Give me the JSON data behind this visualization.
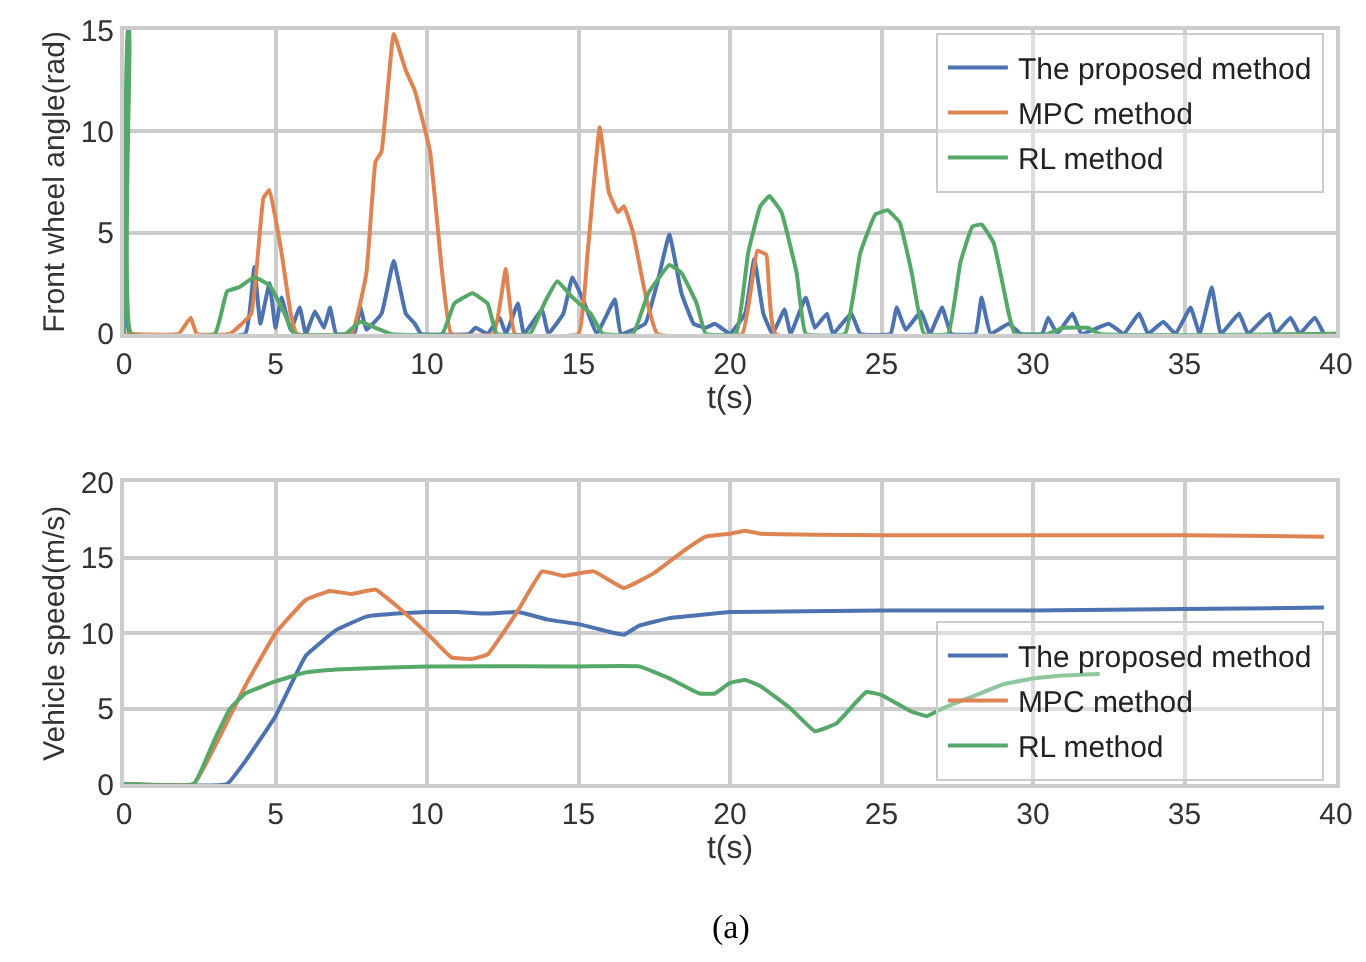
{
  "chart_data": [
    {
      "type": "line",
      "xlabel": "t(s)",
      "ylabel": "Front wheel angle(rad)",
      "xlim": [
        0,
        40
      ],
      "xticks": [
        0,
        5,
        10,
        15,
        20,
        25,
        30,
        35,
        40
      ],
      "ylim": [
        0,
        15
      ],
      "yticks": [
        0,
        5,
        10,
        15
      ],
      "grid": true,
      "legend": "top right",
      "marker": "none",
      "line_style": "solid",
      "series": [
        {
          "name": "The proposed method",
          "color": "#4c72b0",
          "x": [
            0,
            0.2,
            4,
            4.3,
            4.5,
            4.8,
            5.0,
            5.2,
            5.5,
            5.8,
            6.0,
            6.3,
            6.6,
            6.8,
            7,
            7.6,
            7.8,
            8.0,
            8.5,
            8.9,
            9.3,
            9.6,
            9.8,
            11.4,
            11.6,
            12,
            12.4,
            12.6,
            13,
            13.2,
            13.8,
            14,
            14.5,
            14.8,
            15.2,
            15.6,
            16.2,
            16.4,
            17.2,
            17.6,
            18,
            18.4,
            18.8,
            19.2,
            19.5,
            19.8,
            20,
            20.5,
            20.8,
            21.1,
            21.4,
            21.8,
            22,
            22.5,
            22.8,
            23.2,
            23.4,
            24,
            24.3,
            25.3,
            25.5,
            25.8,
            26.3,
            26.6,
            27,
            27.3,
            28.1,
            28.3,
            28.6,
            29.2,
            29.6,
            30.3,
            30.5,
            30.8,
            31.3,
            31.6,
            32.5,
            33,
            33.5,
            33.8,
            34.3,
            34.7,
            35.2,
            35.5,
            35.9,
            36.2,
            36.8,
            37.1,
            37.8,
            38,
            38.5,
            38.8,
            39.3,
            39.6
          ],
          "values": [
            2.3,
            0,
            0,
            3.3,
            0.5,
            2.5,
            0.3,
            1.8,
            0.2,
            1.3,
            0,
            1.1,
            0.3,
            1.3,
            0,
            0,
            1.3,
            0.2,
            1.0,
            3.6,
            1.0,
            0.5,
            0,
            0,
            0.3,
            0,
            0.8,
            0,
            1.5,
            0,
            1.2,
            0,
            1.0,
            2.8,
            1.5,
            0,
            1.7,
            0,
            0.5,
            2.5,
            4.9,
            2.0,
            0.5,
            0.3,
            0.5,
            0.2,
            0,
            1.0,
            3.7,
            1.0,
            0,
            1.2,
            0,
            1.8,
            0.3,
            1.0,
            0,
            1.0,
            0,
            0,
            1.3,
            0.2,
            1.1,
            0,
            1.3,
            0,
            0,
            1.8,
            0,
            0.5,
            0,
            0,
            0.8,
            0,
            1.0,
            0,
            0.5,
            0,
            1.0,
            0,
            0.6,
            0,
            1.3,
            0,
            2.3,
            0,
            1.0,
            0,
            1.0,
            0,
            0.8,
            0,
            0.8,
            0
          ]
        },
        {
          "name": "MPC method",
          "color": "#dd8452",
          "x": [
            0,
            1.8,
            2.2,
            2.4,
            3.5,
            4.2,
            4.6,
            4.8,
            5.2,
            5.5,
            5.7,
            7.5,
            8.0,
            8.3,
            8.5,
            8.9,
            9.3,
            9.6,
            10.1,
            10.5,
            10.8,
            12.2,
            12.6,
            12.9,
            15.0,
            15.3,
            15.7,
            16.0,
            16.3,
            16.5,
            16.8,
            17.2,
            17.6,
            20.4,
            20.9,
            21.2,
            21.5,
            40
          ],
          "values": [
            0,
            0,
            0.8,
            0,
            0,
            1,
            6.7,
            7.1,
            4,
            1,
            0,
            0,
            3,
            8.5,
            9,
            14.8,
            13,
            12,
            9,
            3,
            0,
            0,
            3.2,
            0,
            0,
            4,
            10.2,
            7,
            6.0,
            6.3,
            5,
            2,
            0,
            0,
            4.1,
            3.9,
            0,
            0
          ]
        },
        {
          "name": "RL method",
          "color": "#55a868",
          "x": [
            0,
            0.12,
            0.18,
            0.24,
            3.0,
            3.4,
            3.8,
            4.3,
            4.8,
            5.3,
            5.6,
            7.3,
            7.8,
            8.3,
            8.8,
            10.5,
            10.9,
            11.5,
            12.0,
            12.3,
            13.4,
            13.9,
            14.3,
            14.8,
            15.4,
            15.8,
            16.8,
            17.3,
            18.0,
            18.4,
            18.9,
            19.2,
            20.2,
            20.6,
            21.0,
            21.3,
            21.7,
            22.2,
            22.5,
            23.8,
            24.3,
            24.8,
            25.2,
            25.6,
            26.0,
            26.4,
            27.2,
            27.6,
            28.0,
            28.3,
            28.7,
            29.2,
            29.4,
            30.5,
            31.0,
            31.8,
            32.2,
            40
          ],
          "values": [
            0,
            15,
            15,
            0,
            0,
            2.1,
            2.3,
            2.8,
            2.4,
            1.0,
            0,
            0,
            0.6,
            0.3,
            0,
            0,
            1.5,
            2.0,
            1.5,
            0,
            0,
            1.6,
            2.6,
            1.8,
            1.0,
            0,
            0,
            2,
            3.4,
            3.0,
            1.5,
            0,
            0,
            4,
            6.3,
            6.8,
            6,
            3,
            0,
            0,
            4,
            5.9,
            6.1,
            5.5,
            3,
            0,
            0,
            3.5,
            5.3,
            5.4,
            4.5,
            1,
            0,
            0,
            0.3,
            0.3,
            0,
            0
          ]
        }
      ]
    },
    {
      "type": "line",
      "xlabel": "t(s)",
      "ylabel": "Vehicle speed(m/s)",
      "xlim": [
        0,
        40
      ],
      "xticks": [
        0,
        5,
        10,
        15,
        20,
        25,
        30,
        35,
        40
      ],
      "ylim": [
        0,
        20
      ],
      "yticks": [
        0,
        5,
        10,
        15,
        20
      ],
      "grid": true,
      "legend": "bottom right",
      "marker": "none",
      "line_style": "solid",
      "annotations": [
        "(a)"
      ],
      "series": [
        {
          "name": "The proposed method",
          "color": "#4c72b0",
          "x": [
            0,
            3.4,
            4,
            5,
            6,
            7,
            8,
            9,
            10,
            11,
            12,
            13,
            14,
            15,
            16,
            16.5,
            17,
            18,
            19,
            20,
            25,
            30,
            35,
            39.6
          ],
          "values": [
            0,
            0,
            1.5,
            4.5,
            8.5,
            10.2,
            11.1,
            11.3,
            11.4,
            11.4,
            11.3,
            11.4,
            10.9,
            10.6,
            10.1,
            9.9,
            10.5,
            11.0,
            11.2,
            11.4,
            11.5,
            11.5,
            11.6,
            11.7
          ]
        },
        {
          "name": "MPC method",
          "color": "#dd8452",
          "x": [
            0,
            2.3,
            3,
            4,
            5,
            6,
            6.8,
            7.5,
            8.3,
            9,
            10,
            10.8,
            11.5,
            12,
            13,
            13.8,
            14.5,
            15.5,
            16.5,
            17.5,
            18.5,
            19.2,
            20,
            20.5,
            21,
            25,
            30,
            35,
            39.6
          ],
          "values": [
            0,
            0,
            2.5,
            6.5,
            10,
            12.2,
            12.8,
            12.6,
            12.9,
            11.8,
            10,
            8.4,
            8.3,
            8.6,
            11.5,
            14.1,
            13.8,
            14.1,
            13,
            14,
            15.5,
            16.4,
            16.6,
            16.8,
            16.6,
            16.5,
            16.5,
            16.5,
            16.4
          ]
        },
        {
          "name": "RL method",
          "color": "#55a868",
          "x": [
            0,
            2.3,
            3,
            3.5,
            4,
            5,
            6,
            7,
            10,
            15,
            17,
            18,
            19,
            19.5,
            20,
            20.5,
            21,
            22,
            22.8,
            23.5,
            24.5,
            25,
            26,
            26.5,
            27,
            28,
            29,
            30,
            31,
            32.2
          ],
          "values": [
            0,
            0,
            3,
            5,
            6,
            6.8,
            7.4,
            7.6,
            7.8,
            7.8,
            7.8,
            7,
            6,
            6,
            6.7,
            6.9,
            6.5,
            5,
            3.5,
            4,
            6.1,
            5.9,
            4.8,
            4.5,
            5,
            5.8,
            6.6,
            7.0,
            7.2,
            7.3
          ]
        }
      ]
    }
  ]
}
